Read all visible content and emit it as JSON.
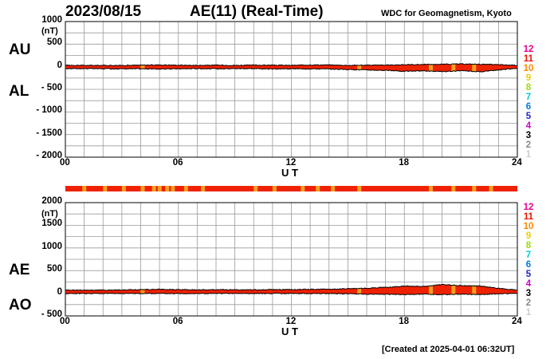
{
  "header": {
    "date": "2023/08/15",
    "title": "AE(11) (Real-Time)",
    "source": "WDC for Geomagnetism, Kyoto"
  },
  "footer": "[Created at 2025-04-01 06:32UT]",
  "colors": {
    "fill": "#ee2200",
    "highlight": "#f4a020",
    "grid": "#9a9a9a",
    "curve": "#000000"
  },
  "color_key": [
    {
      "label": "12",
      "color": "#ee0088"
    },
    {
      "label": "11",
      "color": "#ee1100"
    },
    {
      "label": "10",
      "color": "#ff8800"
    },
    {
      "label": "9",
      "color": "#eecc00"
    },
    {
      "label": "8",
      "color": "#99dd00"
    },
    {
      "label": "7",
      "color": "#00cccc"
    },
    {
      "label": "6",
      "color": "#0077ee"
    },
    {
      "label": "5",
      "color": "#2222cc"
    },
    {
      "label": "4",
      "color": "#cc00cc"
    },
    {
      "label": "3",
      "color": "#000000"
    },
    {
      "label": "2",
      "color": "#888888"
    },
    {
      "label": "1",
      "color": "#cccccc"
    }
  ],
  "station_bar": {
    "base_color": "#ee2200",
    "highlight_color": "#f4a020",
    "highlight_hours": [
      0.9,
      2.0,
      3.0,
      4.0,
      4.6,
      4.9,
      5.3,
      5.6,
      6.3,
      7.2,
      10.0,
      11.0,
      12.5,
      13.3,
      14.1,
      15.5,
      19.3,
      20.5,
      21.6,
      22.5
    ]
  },
  "chart_data": [
    {
      "type": "area",
      "id": "au-al",
      "side_labels": [
        "AU",
        "AL"
      ],
      "unit": "(nT)",
      "xlabel": "U T",
      "xlim": [
        0,
        24
      ],
      "ylim": [
        -2000,
        1000
      ],
      "x_ticks": [
        "00",
        "06",
        "12",
        "18",
        "24"
      ],
      "y_ticks": [
        "1000",
        "500",
        "0",
        "- 500",
        "- 1000",
        "- 1500",
        "- 2000"
      ],
      "x_hours": [
        0,
        1,
        2,
        3,
        4,
        5,
        6,
        7,
        8,
        9,
        10,
        11,
        12,
        13,
        14,
        15,
        16,
        17,
        18,
        19,
        20,
        21,
        22,
        23,
        24
      ],
      "series": [
        {
          "name": "AU",
          "values": [
            35,
            30,
            30,
            30,
            35,
            40,
            35,
            30,
            35,
            30,
            35,
            35,
            30,
            40,
            40,
            30,
            35,
            35,
            45,
            50,
            55,
            60,
            55,
            45,
            30
          ]
        },
        {
          "name": "AL",
          "values": [
            -40,
            -40,
            -45,
            -45,
            -45,
            -50,
            -45,
            -40,
            -45,
            -40,
            -40,
            -50,
            -45,
            -45,
            -50,
            -60,
            -70,
            -80,
            -100,
            -90,
            -110,
            -90,
            -110,
            -70,
            -30
          ]
        }
      ],
      "highlight_hours": [
        4.0,
        15.5,
        19.3,
        20.5,
        21.6
      ]
    },
    {
      "type": "area",
      "id": "ae-ao",
      "side_labels": [
        "AE",
        "AO"
      ],
      "unit": "(nT)",
      "xlabel": "U T",
      "xlim": [
        0,
        24
      ],
      "ylim": [
        -500,
        2000
      ],
      "x_ticks": [
        "00",
        "06",
        "12",
        "18",
        "24"
      ],
      "y_ticks": [
        "2000",
        "1500",
        "1000",
        "500",
        "0",
        "- 500"
      ],
      "x_hours": [
        0,
        1,
        2,
        3,
        4,
        5,
        6,
        7,
        8,
        9,
        10,
        11,
        12,
        13,
        14,
        15,
        16,
        17,
        18,
        19,
        20,
        21,
        22,
        23,
        24
      ],
      "series": [
        {
          "name": "AE",
          "values": [
            70,
            70,
            70,
            75,
            80,
            85,
            80,
            75,
            80,
            75,
            75,
            80,
            80,
            85,
            90,
            100,
            110,
            130,
            160,
            150,
            190,
            170,
            160,
            110,
            70
          ]
        },
        {
          "name": "AO",
          "values": [
            -5,
            -5,
            -5,
            -5,
            -5,
            -5,
            -5,
            -5,
            -5,
            -5,
            -5,
            -5,
            -5,
            -5,
            -5,
            -10,
            -20,
            -20,
            -30,
            -20,
            -30,
            -20,
            -30,
            -10,
            -5
          ]
        }
      ],
      "highlight_hours": [
        4.0,
        15.5,
        19.3,
        20.5,
        21.6
      ]
    }
  ]
}
